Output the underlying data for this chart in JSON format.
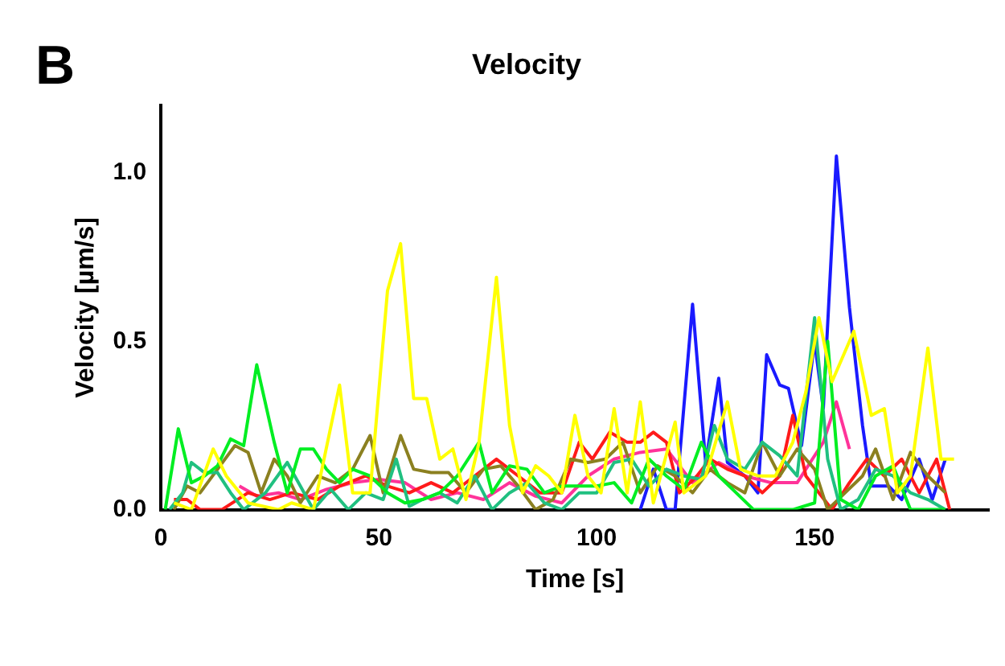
{
  "chart_data": {
    "type": "line",
    "title": "Velocity",
    "xlabel": "Time [s]",
    "ylabel": "Velocity [µm/s]",
    "annotations": [
      "B"
    ],
    "xlim": [
      0,
      190
    ],
    "xticks": [
      0,
      50,
      100,
      150
    ],
    "ylim": [
      0,
      1.2
    ],
    "yticks": [
      {
        "value": 0,
        "label": "0.0"
      },
      0.5,
      {
        "value": 1,
        "label": "1.0"
      }
    ],
    "grid": false,
    "legend": false,
    "marker": "none",
    "series": [
      {
        "color": "#ffff00",
        "x": [
          3,
          7,
          12,
          15,
          20,
          27,
          30,
          35,
          41,
          44,
          48,
          52,
          55,
          58,
          61,
          64,
          67,
          70,
          73,
          77,
          80,
          83,
          86,
          89,
          92,
          95,
          98,
          101,
          104,
          107,
          110,
          113,
          118,
          120,
          125,
          130,
          133,
          137,
          141,
          145,
          148,
          151,
          154,
          159,
          163,
          166,
          169,
          172,
          176,
          179,
          182
        ],
        "values": [
          0.02,
          0,
          0.18,
          0.1,
          0.02,
          0,
          0.02,
          0,
          0.37,
          0.05,
          0.05,
          0.65,
          0.79,
          0.33,
          0.33,
          0.15,
          0.18,
          0.03,
          0.2,
          0.69,
          0.25,
          0.05,
          0.13,
          0.1,
          0.05,
          0.28,
          0.1,
          0.05,
          0.3,
          0.05,
          0.32,
          0.02,
          0.26,
          0.05,
          0.1,
          0.32,
          0.12,
          0.1,
          0.1,
          0.2,
          0.35,
          0.57,
          0.38,
          0.53,
          0.28,
          0.3,
          0.05,
          0.1,
          0.48,
          0.15,
          0.15
        ]
      },
      {
        "color": "#00ee22",
        "x": [
          1,
          4,
          7,
          10,
          13,
          16,
          19,
          22,
          26,
          29,
          32,
          35,
          38,
          41,
          44,
          48,
          52,
          56,
          60,
          64,
          68,
          73,
          76,
          80,
          84,
          88,
          92,
          96,
          100,
          104,
          108,
          112,
          116,
          120,
          124,
          128,
          132,
          136,
          140,
          145,
          150,
          153,
          156,
          160,
          164,
          168,
          172,
          176,
          180
        ],
        "values": [
          0,
          0.24,
          0.08,
          0.1,
          0.13,
          0.21,
          0.19,
          0.43,
          0.2,
          0.05,
          0.18,
          0.18,
          0.12,
          0.08,
          0.12,
          0.1,
          0.05,
          0.02,
          0.03,
          0.05,
          0.1,
          0.2,
          0.05,
          0.13,
          0.12,
          0.05,
          0.07,
          0.07,
          0.07,
          0.08,
          0.02,
          0.15,
          0.1,
          0.06,
          0.2,
          0.1,
          0.05,
          0,
          0,
          0,
          0.02,
          0.5,
          0.03,
          0,
          0.1,
          0.13,
          0,
          0,
          0
        ]
      },
      {
        "color": "#20c080",
        "x": [
          2,
          5,
          7,
          10,
          13,
          16,
          19,
          24,
          29,
          32,
          35,
          39,
          43,
          47,
          51,
          54,
          57,
          60,
          64,
          68,
          72,
          76,
          80,
          84,
          88,
          92,
          96,
          100,
          104,
          108,
          112,
          116,
          120,
          124,
          127,
          130,
          134,
          138,
          142,
          146,
          150,
          153,
          156,
          160,
          164,
          168,
          172,
          176,
          180
        ],
        "values": [
          0,
          0.05,
          0.14,
          0.11,
          0.11,
          0.05,
          0,
          0.05,
          0.14,
          0.07,
          0,
          0.06,
          0,
          0.05,
          0.03,
          0.15,
          0.01,
          0.03,
          0.05,
          0.02,
          0.1,
          0,
          0.05,
          0.08,
          0.02,
          0,
          0.05,
          0.05,
          0.14,
          0.15,
          0.07,
          0.12,
          0.1,
          0.09,
          0.25,
          0.15,
          0.12,
          0.2,
          0.16,
          0.1,
          0.57,
          0.15,
          0,
          0.03,
          0.12,
          0.1,
          0.05,
          0.03,
          0
        ]
      },
      {
        "color": "#8b8020",
        "x": [
          3,
          6,
          9,
          13,
          17,
          20,
          23,
          26,
          29,
          32,
          36,
          40,
          44,
          48,
          51,
          55,
          58,
          62,
          66,
          70,
          74,
          78,
          82,
          86,
          90,
          94,
          98,
          102,
          106,
          110,
          114,
          118,
          122,
          126,
          130,
          134,
          138,
          142,
          146,
          150,
          153,
          157,
          161,
          164,
          168,
          172,
          176,
          180
        ],
        "values": [
          0,
          0.07,
          0.05,
          0.12,
          0.19,
          0.17,
          0.05,
          0.15,
          0.1,
          0.02,
          0.1,
          0.08,
          0.12,
          0.22,
          0.05,
          0.22,
          0.12,
          0.11,
          0.11,
          0.05,
          0.12,
          0.13,
          0.07,
          0,
          0.03,
          0.15,
          0.14,
          0.15,
          0.2,
          0.05,
          0.13,
          0.1,
          0.05,
          0.12,
          0.08,
          0.05,
          0.2,
          0.1,
          0.18,
          0.12,
          0,
          0.05,
          0.1,
          0.18,
          0.03,
          0.17,
          0.1,
          0.05
        ]
      },
      {
        "color": "#ff1a1a",
        "x": [
          3,
          6,
          9,
          14,
          20,
          25,
          30,
          36,
          41,
          47,
          52,
          57,
          62,
          67,
          72,
          77,
          82,
          87,
          92,
          96,
          99,
          103,
          107,
          110,
          113,
          116,
          119,
          123,
          126,
          130,
          134,
          138,
          142,
          145,
          148,
          151,
          154,
          158,
          162,
          166,
          170,
          174,
          178,
          181
        ],
        "values": [
          0.03,
          0.03,
          0,
          0,
          0.05,
          0.03,
          0.05,
          0.03,
          0.07,
          0.1,
          0.07,
          0.05,
          0.08,
          0.05,
          0.1,
          0.15,
          0.1,
          0.05,
          0.05,
          0.2,
          0.15,
          0.23,
          0.2,
          0.2,
          0.23,
          0.2,
          0.05,
          0.1,
          0.15,
          0.12,
          0.1,
          0.05,
          0.1,
          0.28,
          0.1,
          0.05,
          0,
          0.08,
          0.15,
          0.1,
          0.15,
          0.05,
          0.15,
          0
        ]
      },
      {
        "color": "#ff3399",
        "x": [
          18,
          22,
          27,
          32,
          38,
          44,
          50,
          56,
          62,
          68,
          74,
          80,
          86,
          92,
          98,
          104,
          110,
          116,
          122,
          128,
          134,
          140,
          146,
          152,
          155,
          158
        ],
        "values": [
          0.07,
          0.04,
          0.05,
          0.03,
          0.06,
          0.08,
          0.09,
          0.08,
          0.03,
          0.05,
          0.03,
          0.08,
          0.04,
          0.02,
          0.1,
          0.15,
          0.17,
          0.18,
          0.08,
          0.14,
          0.1,
          0.08,
          0.08,
          0.2,
          0.32,
          0.18
        ]
      },
      {
        "color": "#1a1aff",
        "x": [
          110,
          113,
          116,
          118,
          122,
          125,
          128,
          130,
          134,
          137,
          139,
          142,
          144,
          147,
          150,
          152,
          155,
          158,
          161,
          163,
          167,
          170,
          174,
          177,
          180
        ],
        "values": [
          0,
          0.12,
          0,
          0,
          0.61,
          0.14,
          0.39,
          0.14,
          0.1,
          0.05,
          0.46,
          0.37,
          0.36,
          0.19,
          0.5,
          0.3,
          1.05,
          0.6,
          0.25,
          0.07,
          0.07,
          0.03,
          0.15,
          0.03,
          0.15
        ]
      }
    ]
  }
}
